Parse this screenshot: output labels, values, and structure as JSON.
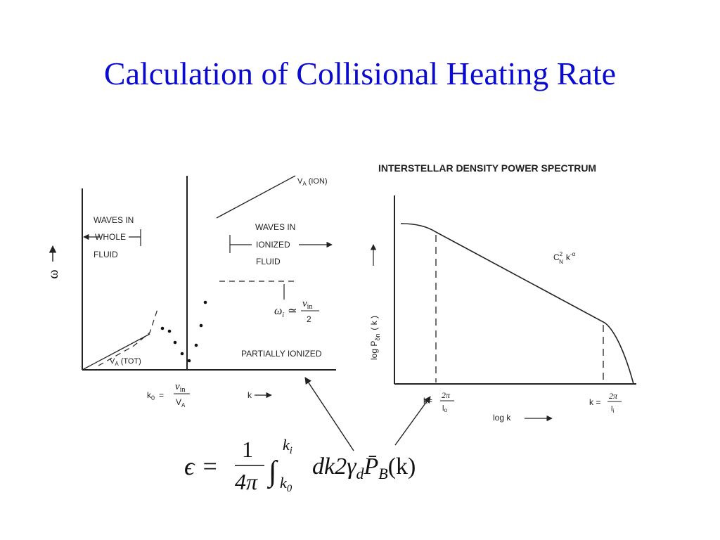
{
  "slide": {
    "title": "Calculation of Collisional Heating Rate",
    "title_color": "#0b0bd0"
  },
  "left_figure": {
    "y_axis_label": "ω",
    "waves_whole_fluid": [
      "WAVES IN",
      "WHOLE",
      "FLUID"
    ],
    "va_ion_label": "V",
    "va_ion_sub": "A",
    "va_ion_suffix": "(ION)",
    "waves_ionized_fluid": [
      "WAVES IN",
      "IONIZED",
      "FLUID"
    ],
    "omega_i_lhs": "ω",
    "omega_i_sub": "i",
    "omega_i_approx": "≃",
    "omega_i_num": "ν",
    "omega_i_num_sub": "in",
    "omega_i_den": "2",
    "partially_ionized": "PARTIALLY IONIZED",
    "va_tot_label": "V",
    "va_tot_sub": "A",
    "va_tot_suffix": "(TOT)",
    "k0_lhs": "k",
    "k0_lhs_sub": "0",
    "k0_equals": "=",
    "k0_num": "ν",
    "k0_num_sub": "in",
    "k0_den": "V",
    "k0_den_sub": "A",
    "x_axis_label": "k"
  },
  "right_figure": {
    "title": "INTERSTELLAR DENSITY POWER SPECTRUM",
    "y_axis_label": "log P",
    "y_axis_sub": "δn",
    "y_axis_arg": "( k )",
    "curve_label_c": "C",
    "curve_label_sup": "2",
    "curve_label_sub": "N",
    "curve_label_k": "k",
    "curve_label_exp": "-α",
    "k_outer_lhs": "k=",
    "k_outer_num": "2π",
    "k_outer_den": "l",
    "k_outer_den_sub": "o",
    "k_inner_lhs": "k =",
    "k_inner_num": "2π",
    "k_inner_den": "l",
    "k_inner_den_sub": "i",
    "x_axis_label": "log k"
  },
  "equation": {
    "lhs": "ϵ",
    "equals": "=",
    "frac_num": "1",
    "frac_den": "4π",
    "integral": "∫",
    "upper_limit": "k",
    "upper_limit_sub": "i",
    "lower_limit": "k",
    "lower_limit_sub": "0",
    "integrand_a": "dk2γ",
    "integrand_a_sub": "d",
    "integrand_p": "P̄",
    "integrand_p_sub": "B",
    "integrand_end": "(k)"
  }
}
